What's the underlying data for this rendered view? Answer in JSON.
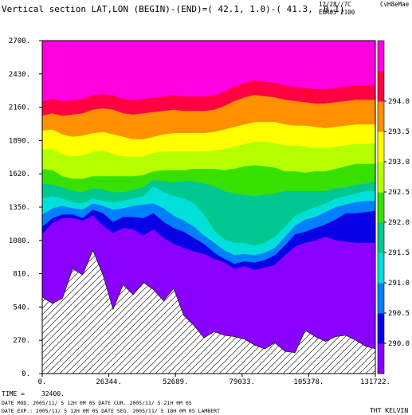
{
  "header": {
    "title": "Vertical section LAT,LON (BEGIN)-(END)=( 42.1,  1.0)-( 41.3, -0.1)",
    "date": "12/28//7C",
    "brand": "CvH8eMae",
    "code": "EBR05 2100"
  },
  "footer": {
    "time_label": "TIME =",
    "time_value": "32400.",
    "line1": "DATE MOD. 2005/11/ 5  12H 0M 0S      DATE CUR. 2005/11/ 5  21H 0M 0S",
    "line2": "DATE EXP.: 2005/11/ 5  12H 0M 0S      DATE SEG. 2005/11/ 5  18H 0M 0S      LAMBERT",
    "units": "THT KELVIN"
  },
  "chart_data": {
    "type": "area",
    "title": "Vertical section LAT,LON (BEGIN)-(END)=( 42.1,  1.0)-( 41.3, -0.1)",
    "xlabel": "",
    "ylabel": "",
    "xlim": [
      0,
      131722
    ],
    "ylim": [
      0,
      2700
    ],
    "x_ticks": [
      "0.",
      "26344.",
      "52689.",
      "79033.",
      "105378.",
      "131722."
    ],
    "y_ticks": [
      "0.",
      "270.",
      "540.",
      "810.",
      "1080.",
      "1350.",
      "1620.",
      "1890.",
      "2160.",
      "2430.",
      "2700."
    ],
    "colorbar": {
      "labels": [
        "290.0",
        "290.5",
        "291.0",
        "291.5",
        "292.0",
        "292.5",
        "293.0",
        "293.5",
        "294.0"
      ],
      "colors": [
        "#8a00ff",
        "#0a00e6",
        "#0080ff",
        "#00e0d8",
        "#00c890",
        "#38e000",
        "#b4ff00",
        "#ffff00",
        "#ff9000",
        "#ff0040",
        "#ff00e0"
      ]
    },
    "x": [
      0,
      4000,
      8000,
      12000,
      16000,
      20000,
      24000,
      28000,
      32000,
      36000,
      40000,
      44000,
      48000,
      52000,
      56000,
      60000,
      64000,
      68000,
      72000,
      76000,
      80000,
      84000,
      88000,
      92000,
      96000,
      100000,
      104000,
      108000,
      112000,
      116000,
      120000,
      124000,
      128000,
      131722
    ],
    "terrain": [
      620,
      570,
      610,
      850,
      800,
      1000,
      800,
      520,
      720,
      640,
      740,
      680,
      590,
      690,
      470,
      390,
      290,
      340,
      310,
      300,
      280,
      230,
      200,
      250,
      180,
      170,
      350,
      300,
      260,
      300,
      310,
      270,
      220,
      200
    ],
    "contours": [
      {
        "value": "290.0",
        "heights": [
          1130,
          1220,
          1260,
          1260,
          1240,
          1280,
          1200,
          1140,
          1180,
          1170,
          1120,
          1170,
          1100,
          1050,
          1020,
          990,
          970,
          930,
          900,
          850,
          870,
          840,
          860,
          880,
          960,
          1030,
          1060,
          1080,
          1110,
          1080,
          1070,
          1060,
          1060,
          1060
        ]
      },
      {
        "value": "290.5",
        "heights": [
          1190,
          1260,
          1290,
          1290,
          1260,
          1330,
          1300,
          1230,
          1270,
          1270,
          1260,
          1300,
          1230,
          1180,
          1150,
          1100,
          1050,
          980,
          930,
          890,
          910,
          900,
          920,
          960,
          1040,
          1130,
          1150,
          1180,
          1210,
          1250,
          1300,
          1300,
          1310,
          1320
        ]
      },
      {
        "value": "291.0",
        "heights": [
          1290,
          1340,
          1360,
          1340,
          1330,
          1380,
          1360,
          1330,
          1340,
          1360,
          1370,
          1380,
          1340,
          1280,
          1240,
          1190,
          1120,
          1060,
          1000,
          960,
          970,
          960,
          980,
          1020,
          1110,
          1200,
          1250,
          1270,
          1310,
          1350,
          1370,
          1390,
          1400,
          1400
        ]
      },
      {
        "value": "291.5",
        "heights": [
          1420,
          1440,
          1420,
          1390,
          1380,
          1420,
          1400,
          1390,
          1400,
          1420,
          1440,
          1520,
          1470,
          1440,
          1420,
          1380,
          1290,
          1160,
          1090,
          1060,
          1060,
          1040,
          1060,
          1110,
          1190,
          1280,
          1320,
          1350,
          1380,
          1420,
          1440,
          1460,
          1480,
          1480
        ]
      },
      {
        "value": "292.0",
        "heights": [
          1540,
          1530,
          1510,
          1480,
          1470,
          1500,
          1490,
          1470,
          1470,
          1490,
          1510,
          1570,
          1560,
          1550,
          1560,
          1560,
          1540,
          1520,
          1480,
          1460,
          1450,
          1440,
          1450,
          1460,
          1480,
          1480,
          1480,
          1480,
          1480,
          1500,
          1510,
          1530,
          1540,
          1560
        ]
      },
      {
        "value": "292.5",
        "heights": [
          1660,
          1650,
          1600,
          1580,
          1580,
          1600,
          1600,
          1600,
          1600,
          1600,
          1610,
          1640,
          1650,
          1650,
          1650,
          1660,
          1660,
          1660,
          1650,
          1660,
          1680,
          1690,
          1680,
          1670,
          1640,
          1640,
          1630,
          1640,
          1640,
          1660,
          1680,
          1700,
          1700,
          1700
        ]
      },
      {
        "value": "293.0",
        "heights": [
          1820,
          1820,
          1780,
          1760,
          1770,
          1800,
          1810,
          1780,
          1760,
          1760,
          1760,
          1790,
          1800,
          1800,
          1800,
          1800,
          1800,
          1810,
          1820,
          1840,
          1860,
          1880,
          1880,
          1870,
          1850,
          1850,
          1840,
          1830,
          1830,
          1840,
          1850,
          1860,
          1860,
          1870
        ]
      },
      {
        "value": "293.5",
        "heights": [
          1970,
          1980,
          1940,
          1920,
          1930,
          1950,
          1960,
          1940,
          1920,
          1900,
          1900,
          1920,
          1940,
          1950,
          1950,
          1950,
          1950,
          1960,
          1980,
          2000,
          2020,
          2040,
          2040,
          2040,
          2020,
          2010,
          2010,
          2000,
          1990,
          2000,
          2010,
          2020,
          2020,
          2020
        ]
      },
      {
        "value": "294.0",
        "heights": [
          2090,
          2110,
          2090,
          2100,
          2110,
          2140,
          2150,
          2140,
          2110,
          2100,
          2110,
          2120,
          2130,
          2140,
          2130,
          2130,
          2130,
          2140,
          2170,
          2210,
          2240,
          2260,
          2250,
          2240,
          2220,
          2210,
          2200,
          2190,
          2190,
          2200,
          2210,
          2220,
          2220,
          2220
        ]
      }
    ]
  }
}
